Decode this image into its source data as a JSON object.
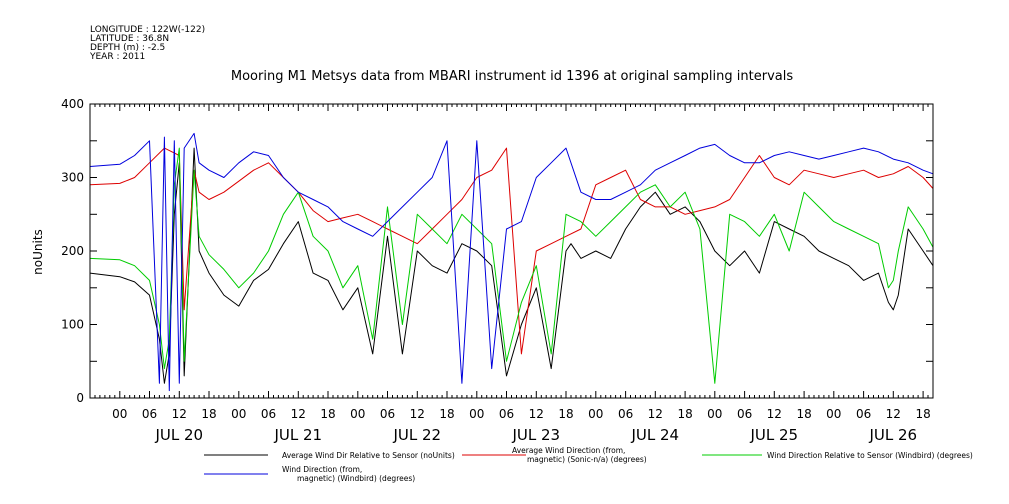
{
  "meta": {
    "longitude": "LONGITUDE : 122W(-122)",
    "latitude": "LATITUDE : 36.8N",
    "depth": "DEPTH (m) : -2.5",
    "year": "YEAR : 2011"
  },
  "chart_data": {
    "type": "line",
    "title": "Mooring M1 Metsys data from MBARI instrument id 1396 at original sampling intervals",
    "ylabel": "noUnits",
    "xlabel": "",
    "ylim": [
      0,
      400
    ],
    "yticks": [
      0,
      100,
      200,
      300,
      400
    ],
    "xlim_hours": [
      -6,
      164
    ],
    "hour_labels": [
      "00",
      "06",
      "12",
      "18"
    ],
    "day_labels": [
      "JUL 20",
      "JUL 21",
      "JUL 22",
      "JUL 23",
      "JUL 24",
      "JUL 25",
      "JUL 26"
    ],
    "grid": false,
    "legend_position": "bottom",
    "x_unit_note": "x values are hours after JUL 20 00:00 2011",
    "series": [
      {
        "name": "Average Wind Dir Relative to Sensor (noUnits)",
        "color": "#000000",
        "x": [
          -6,
          0,
          3,
          6,
          8,
          9,
          10,
          11,
          12,
          13,
          15,
          16,
          18,
          21,
          24,
          27,
          30,
          33,
          36,
          39,
          42,
          45,
          48,
          51,
          54,
          57,
          60,
          63,
          66,
          69,
          72,
          75,
          78,
          81,
          84,
          87,
          90,
          91,
          93,
          96,
          99,
          102,
          105,
          108,
          111,
          114,
          117,
          120,
          123,
          126,
          129,
          132,
          135,
          138,
          141,
          144,
          147,
          150,
          153,
          155,
          156,
          157,
          159,
          162,
          164
        ],
        "y": [
          170,
          165,
          158,
          140,
          80,
          20,
          60,
          250,
          320,
          30,
          340,
          200,
          170,
          140,
          125,
          160,
          175,
          210,
          240,
          170,
          160,
          120,
          150,
          60,
          220,
          60,
          200,
          180,
          170,
          210,
          200,
          180,
          30,
          100,
          150,
          40,
          200,
          210,
          190,
          200,
          190,
          230,
          260,
          280,
          250,
          260,
          240,
          200,
          180,
          200,
          170,
          240,
          230,
          220,
          200,
          190,
          180,
          160,
          170,
          130,
          120,
          140,
          230,
          200,
          180
        ]
      },
      {
        "name": "Average Wind Direction (from, magnetic) (Sonic-n/a) (degrees)",
        "color": "#dd0000",
        "x": [
          -6,
          0,
          3,
          6,
          9,
          12,
          13,
          15,
          16,
          18,
          21,
          24,
          27,
          30,
          33,
          36,
          39,
          42,
          45,
          48,
          51,
          54,
          57,
          60,
          63,
          66,
          69,
          72,
          75,
          78,
          81,
          84,
          87,
          90,
          93,
          96,
          99,
          102,
          105,
          108,
          111,
          114,
          117,
          120,
          123,
          126,
          129,
          132,
          135,
          138,
          141,
          144,
          147,
          150,
          153,
          156,
          159,
          162,
          164
        ],
        "y": [
          290,
          292,
          300,
          320,
          340,
          330,
          120,
          310,
          280,
          270,
          280,
          295,
          310,
          320,
          300,
          280,
          255,
          240,
          245,
          250,
          240,
          230,
          220,
          210,
          230,
          250,
          270,
          300,
          310,
          340,
          60,
          200,
          210,
          220,
          230,
          290,
          300,
          310,
          270,
          260,
          260,
          250,
          255,
          260,
          270,
          300,
          330,
          300,
          290,
          310,
          305,
          300,
          305,
          310,
          300,
          305,
          315,
          300,
          285
        ]
      },
      {
        "name": "Wind Direction Relative to Sensor (Windbird) (degrees)",
        "color": "#00cc00",
        "x": [
          -6,
          0,
          3,
          6,
          8,
          9,
          10,
          11,
          12,
          13,
          15,
          16,
          18,
          21,
          24,
          27,
          30,
          33,
          36,
          39,
          42,
          45,
          48,
          51,
          54,
          57,
          60,
          63,
          66,
          69,
          72,
          75,
          78,
          81,
          84,
          87,
          90,
          93,
          96,
          99,
          102,
          105,
          108,
          111,
          114,
          117,
          120,
          123,
          126,
          129,
          132,
          135,
          138,
          141,
          144,
          147,
          150,
          153,
          155,
          156,
          157,
          159,
          162,
          164
        ],
        "y": [
          190,
          188,
          180,
          160,
          100,
          40,
          80,
          290,
          340,
          50,
          310,
          220,
          195,
          175,
          150,
          170,
          200,
          250,
          280,
          220,
          200,
          150,
          180,
          80,
          260,
          100,
          250,
          230,
          210,
          250,
          230,
          210,
          50,
          130,
          180,
          60,
          250,
          240,
          220,
          240,
          260,
          280,
          290,
          260,
          280,
          230,
          20,
          250,
          240,
          220,
          250,
          200,
          280,
          260,
          240,
          230,
          220,
          210,
          150,
          160,
          200,
          260,
          230,
          205
        ]
      },
      {
        "name": "Wind Direction (from, magnetic) (Windbird) (degrees)",
        "color": "#0000dd",
        "x": [
          -6,
          0,
          3,
          6,
          8,
          9,
          10,
          11,
          12,
          13,
          15,
          16,
          18,
          21,
          24,
          27,
          30,
          33,
          36,
          39,
          42,
          45,
          48,
          51,
          54,
          57,
          60,
          63,
          66,
          69,
          72,
          75,
          78,
          81,
          84,
          87,
          90,
          93,
          96,
          99,
          102,
          105,
          108,
          111,
          114,
          117,
          120,
          123,
          126,
          129,
          132,
          135,
          138,
          141,
          144,
          147,
          150,
          153,
          156,
          159,
          162,
          164
        ],
        "y": [
          315,
          318,
          330,
          350,
          20,
          355,
          10,
          350,
          20,
          340,
          360,
          320,
          310,
          300,
          320,
          335,
          330,
          300,
          280,
          270,
          260,
          240,
          230,
          220,
          240,
          260,
          280,
          300,
          350,
          20,
          350,
          40,
          230,
          240,
          300,
          320,
          340,
          280,
          270,
          270,
          280,
          290,
          310,
          320,
          330,
          340,
          345,
          330,
          320,
          320,
          330,
          335,
          330,
          325,
          330,
          335,
          340,
          335,
          325,
          320,
          310,
          305
        ]
      }
    ]
  },
  "legend": {
    "black_label": "Average Wind Dir Relative to Sensor (noUnits)",
    "red_label_line1": "Average Wind Direction (from,",
    "red_label_line2": "magnetic) (Sonic-n/a) (degrees)",
    "green_label": "Wind Direction Relative to Sensor (Windbird) (degrees)",
    "blue_label_line1": "Wind Direction (from,",
    "blue_label_line2": "magnetic) (Windbird) (degrees)"
  }
}
